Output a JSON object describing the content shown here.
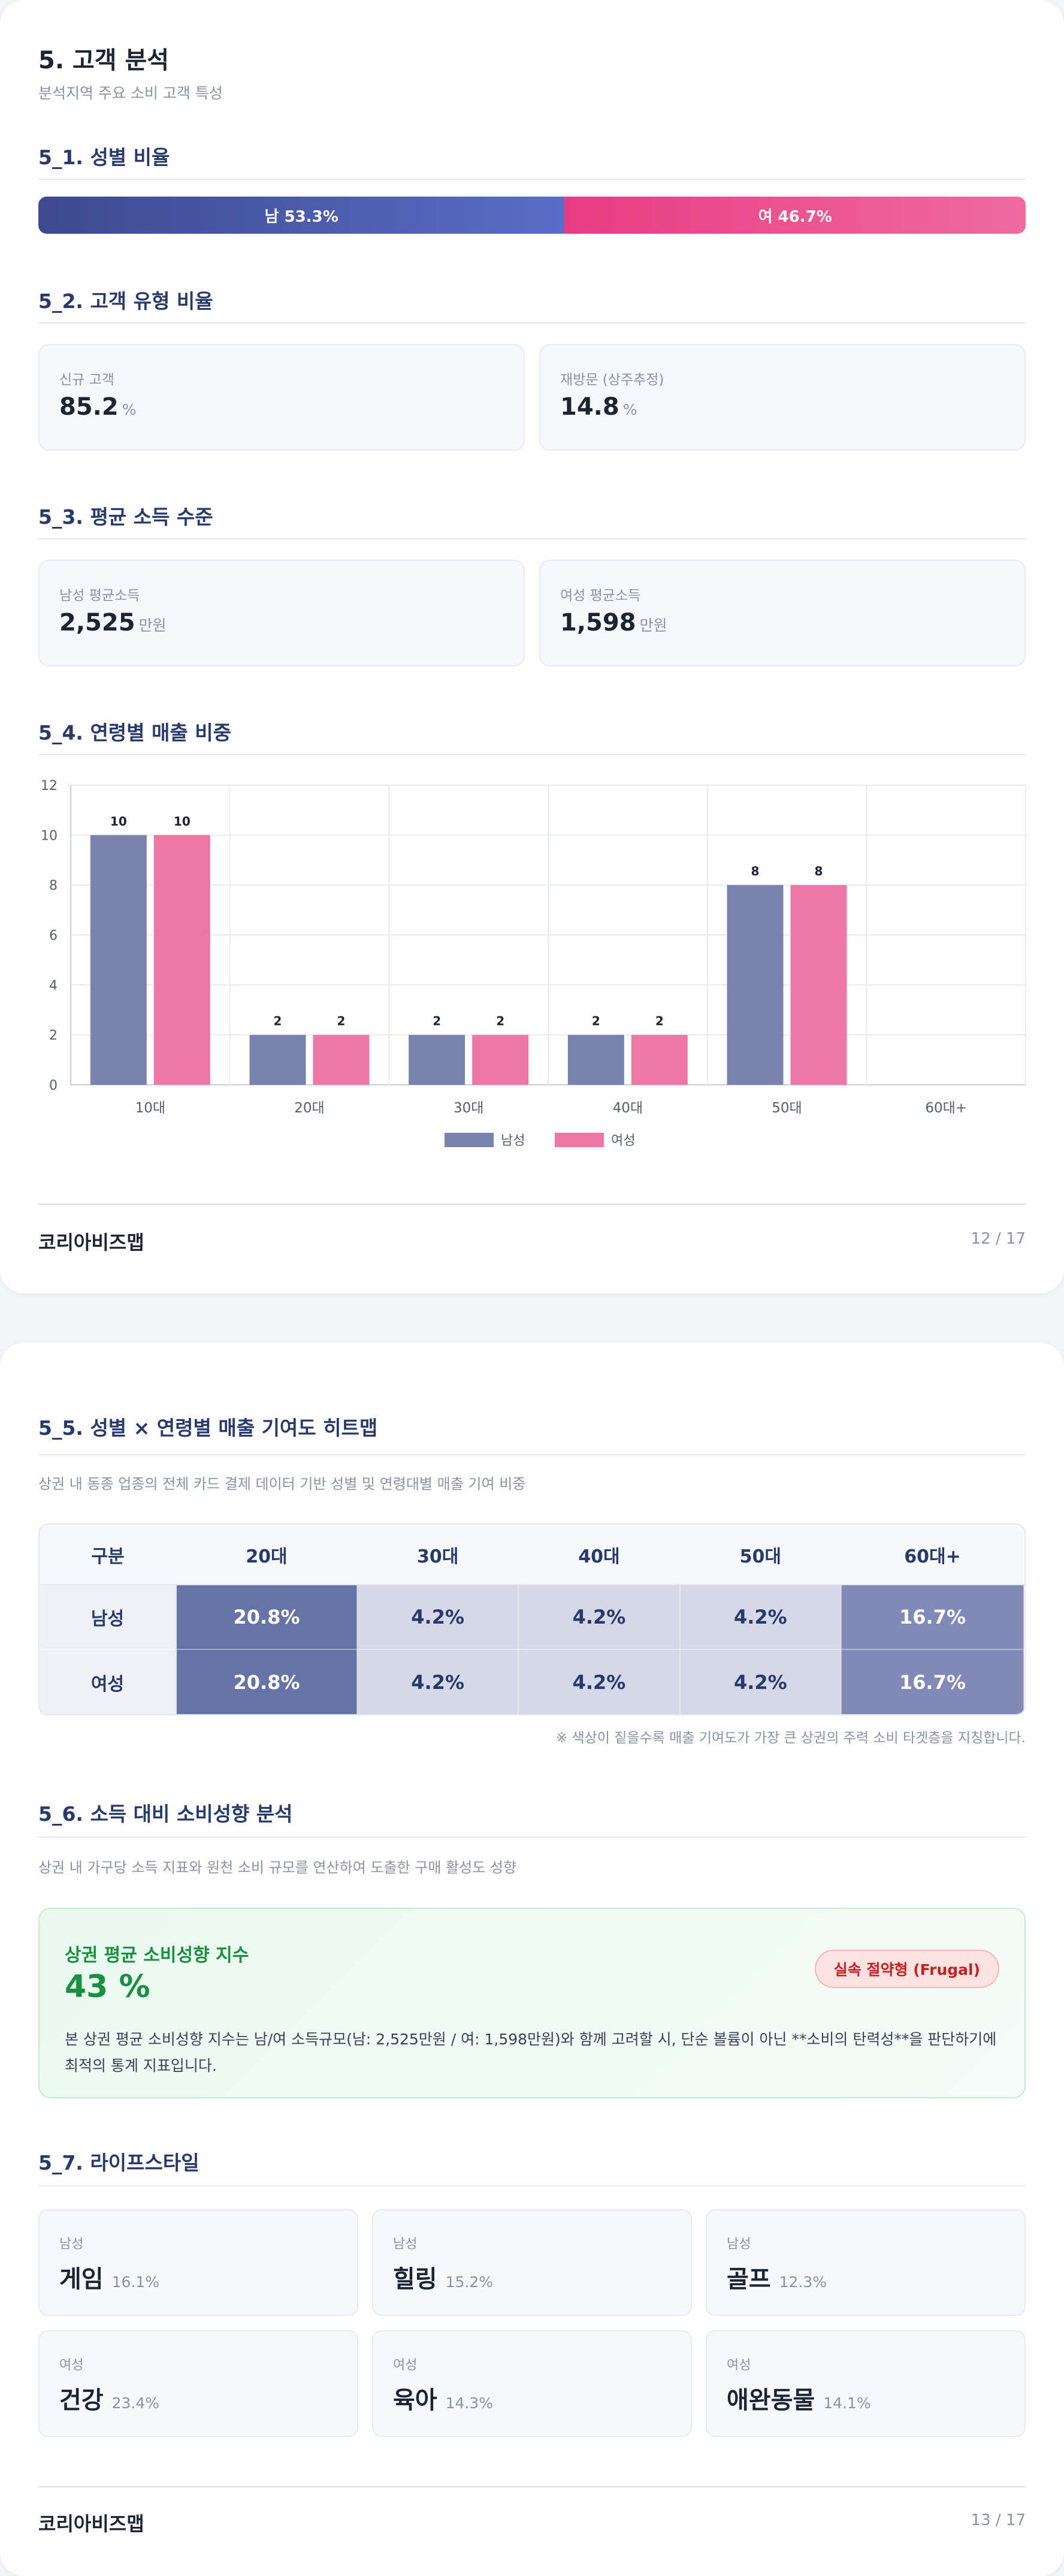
{
  "page1": {
    "title": "5. 고객 분석",
    "subtitle": "분석지역 주요 소비 고객 특성",
    "gender_ratio": {
      "section_title": "5_1. 성별 비율",
      "male_label": "남 53.3%",
      "female_label": "여 46.7%",
      "male_pct": 53.3,
      "female_pct": 46.7
    },
    "customer_type": {
      "section_title": "5_2. 고객 유형 비율",
      "cards": [
        {
          "label": "신규 고객",
          "value": "85.2",
          "unit": "%"
        },
        {
          "label": "재방문 (상주추정)",
          "value": "14.8",
          "unit": "%"
        }
      ]
    },
    "income": {
      "section_title": "5_3. 평균 소득 수준",
      "cards": [
        {
          "label": "남성 평균소득",
          "value": "2,525",
          "unit": "만원"
        },
        {
          "label": "여성 평균소득",
          "value": "1,598",
          "unit": "만원"
        }
      ]
    },
    "age_sales": {
      "section_title": "5_4. 연령별 매출 비중"
    },
    "footer": {
      "brand": "코리아비즈맵",
      "page": "12 / 17"
    }
  },
  "chart_data": {
    "type": "bar",
    "categories": [
      "10대",
      "20대",
      "30대",
      "40대",
      "50대",
      "60대+"
    ],
    "series": [
      {
        "name": "남성",
        "values": [
          10,
          2,
          2,
          2,
          8,
          null
        ],
        "color": "#7a82ae"
      },
      {
        "name": "여성",
        "values": [
          10,
          2,
          2,
          2,
          8,
          null
        ],
        "color": "#ef77a6"
      }
    ],
    "title": "",
    "xlabel": "",
    "ylabel": "",
    "ylim": [
      0,
      12
    ],
    "yticks": [
      0,
      2,
      4,
      6,
      8,
      10,
      12
    ],
    "grid": true,
    "legend": "bottom",
    "data_labels": true
  },
  "page2": {
    "heatmap": {
      "section_title": "5_5. 성별 × 연령별 매출 기여도 히트맵",
      "desc": "상권 내 동종 업종의 전체 카드 결제 데이터 기반 성별 및 연령대별 매출 기여 비중",
      "header": [
        "구분",
        "20대",
        "30대",
        "40대",
        "50대",
        "60대+"
      ],
      "rows": [
        {
          "label": "남성",
          "cells": [
            "20.8%",
            "4.2%",
            "4.2%",
            "4.2%",
            "16.7%"
          ]
        },
        {
          "label": "여성",
          "cells": [
            "20.8%",
            "4.2%",
            "4.2%",
            "4.2%",
            "16.7%"
          ]
        }
      ],
      "note": "※ 색상이 짙을수록 매출 기여도가 가장 큰 상권의 주력 소비 타겟층을 지칭합니다."
    },
    "spending": {
      "section_title": "5_6. 소득 대비 소비성향 분석",
      "desc": "상권 내 가구당 소득 지표와 원천 소비 규모를 연산하여 도출한 구매 활성도 성향",
      "card_title": "상권 평균 소비성향 지수",
      "value": "43 %",
      "badge": "실속 절약형 (Frugal)",
      "text": "본 상권 평균 소비성향 지수는 남/여 소득규모(남: 2,525만원 / 여: 1,598만원)와 함께 고려할 시, 단순 볼륨이 아닌 **소비의 탄력성**을 판단하기에 최적의 통계 지표입니다."
    },
    "lifestyle": {
      "section_title": "5_7. 라이프스타일",
      "items": [
        {
          "gender": "남성",
          "name": "게임",
          "pct": "16.1%"
        },
        {
          "gender": "남성",
          "name": "힐링",
          "pct": "15.2%"
        },
        {
          "gender": "남성",
          "name": "골프",
          "pct": "12.3%"
        },
        {
          "gender": "여성",
          "name": "건강",
          "pct": "23.4%"
        },
        {
          "gender": "여성",
          "name": "육아",
          "pct": "14.3%"
        },
        {
          "gender": "여성",
          "name": "애완동물",
          "pct": "14.1%"
        }
      ]
    },
    "footer": {
      "brand": "코리아비즈맵",
      "page": "13 / 17"
    }
  }
}
